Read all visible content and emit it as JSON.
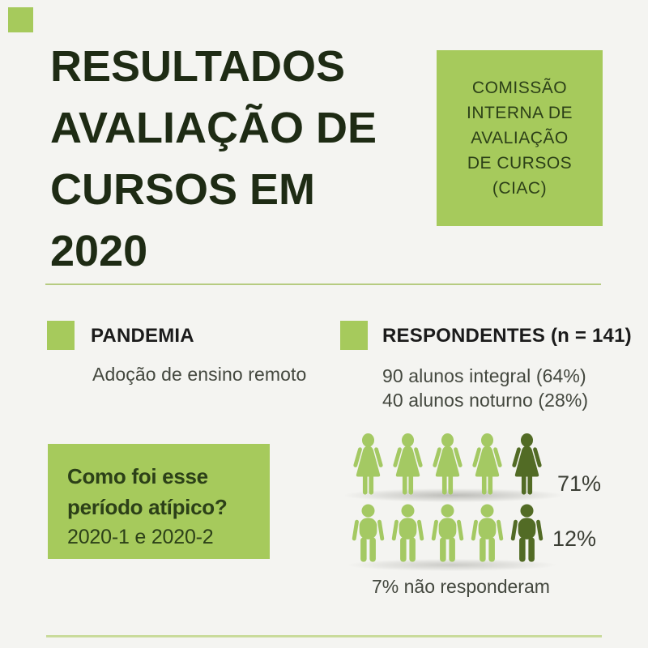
{
  "colors": {
    "background": "#f4f4f1",
    "accent_green": "#a6ca5c",
    "icon_light_green": "#a4c963",
    "icon_dark_green": "#526b25",
    "title_text": "#1e2b14",
    "heading_text": "#1b1b1b",
    "body_text": "#43473e",
    "box_text": "#2c4018",
    "divider_top": "#b6cb81",
    "divider_bottom": "#c9db9b"
  },
  "title": {
    "lines": [
      "RESULTADOS",
      "AVALIAÇÃO DE",
      "CURSOS EM",
      "2020"
    ]
  },
  "ciac_box": {
    "lines": [
      "COMISSÃO",
      "INTERNA DE",
      "AVALIAÇÃO",
      "DE CURSOS",
      "(CIAC)"
    ]
  },
  "sections": {
    "pandemia": {
      "heading": "PANDEMIA",
      "body": "Adoção de ensino remoto"
    },
    "respondentes": {
      "heading": "RESPONDENTES (n = 141)",
      "lines": [
        "90 alunos integral (64%)",
        "40 alunos noturno (28%)"
      ]
    }
  },
  "question_box": {
    "line1": "Como foi esse",
    "line2": "período atípico?",
    "line3": "2020-1 e 2020-2"
  },
  "pictograph": {
    "rows": [
      {
        "type": "female",
        "light_count": 4,
        "dark_count": 1,
        "label": "71%"
      },
      {
        "type": "male",
        "light_count": 4,
        "dark_count": 1,
        "label": "12%"
      }
    ],
    "footnote": "7% não responderam"
  }
}
